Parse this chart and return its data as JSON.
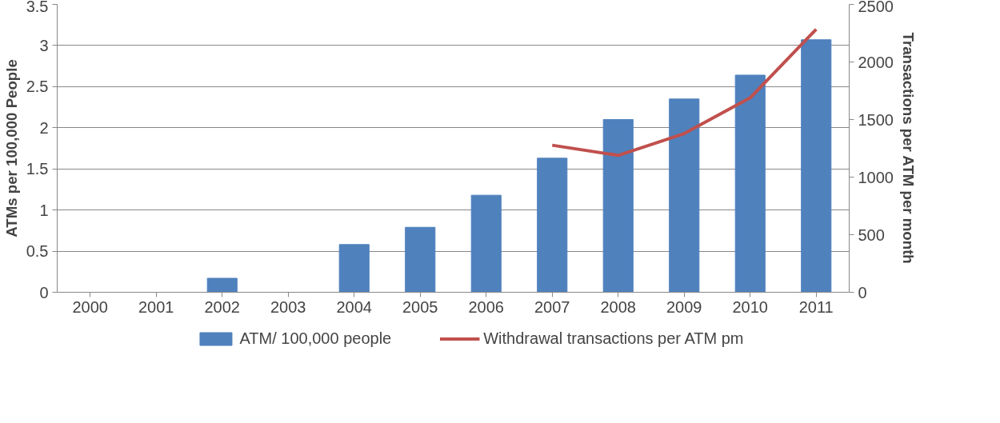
{
  "chart_data": {
    "type": "bar",
    "ylabel": "ATMs per 100,000 People",
    "y2label": "Transactions per ATM per month",
    "categories": [
      "2000",
      "2001",
      "2002",
      "2003",
      "2004",
      "2005",
      "2006",
      "2007",
      "2008",
      "2009",
      "2010",
      "2011"
    ],
    "series": [
      {
        "name": "ATM/ 100,000 people",
        "color": "#4f81bd",
        "values": [
          null,
          null,
          0.17,
          null,
          0.58,
          0.79,
          1.18,
          1.63,
          2.1,
          2.35,
          2.64,
          3.07
        ]
      },
      {
        "name": "Withdrawal transactions per ATM pm",
        "type": "line",
        "axis": "y2",
        "color": "#c0504d",
        "values": [
          null,
          null,
          null,
          null,
          null,
          null,
          null,
          1277,
          1189,
          1378,
          1689,
          2284
        ]
      }
    ],
    "ylim": [
      0,
      3.5
    ],
    "yticks": [
      0,
      0.5,
      1,
      1.5,
      2,
      2.5,
      3,
      3.5
    ],
    "y2lim": [
      0,
      2500
    ],
    "y2ticks": [
      0,
      500,
      1000,
      1500,
      2000,
      2500
    ],
    "grid": "y",
    "legend": "bottom",
    "line_style": "solid",
    "marker": "none"
  }
}
